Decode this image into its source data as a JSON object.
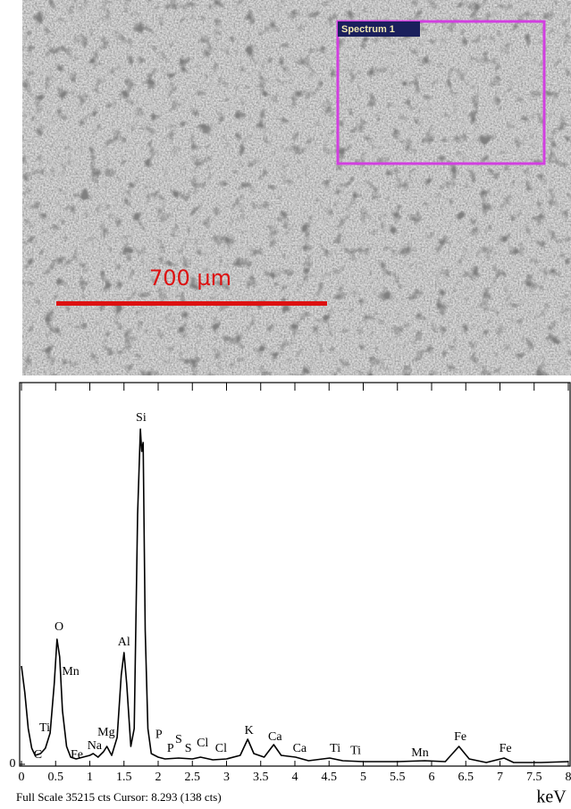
{
  "image": {
    "region_label": "Spectrum 1",
    "scale_bar_label": "700 µm"
  },
  "chart_data": {
    "type": "line",
    "x": [
      0,
      0.05,
      0.1,
      0.15,
      0.2,
      0.28,
      0.35,
      0.42,
      0.48,
      0.52,
      0.56,
      0.6,
      0.66,
      0.72,
      0.8,
      0.9,
      1.0,
      1.05,
      1.12,
      1.2,
      1.25,
      1.32,
      1.4,
      1.46,
      1.5,
      1.54,
      1.6,
      1.65,
      1.7,
      1.74,
      1.76,
      1.78,
      1.81,
      1.85,
      1.9,
      2.0,
      2.1,
      2.3,
      2.5,
      2.62,
      2.8,
      3.0,
      3.2,
      3.31,
      3.4,
      3.55,
      3.69,
      3.8,
      4.01,
      4.2,
      4.51,
      4.7,
      5.0,
      5.5,
      5.9,
      6.2,
      6.4,
      6.55,
      6.8,
      7.06,
      7.2,
      7.6,
      8.0
    ],
    "values": [
      9115,
      6630,
      3315,
      1490,
      830,
      995,
      1490,
      2900,
      7460,
      11600,
      9940,
      4970,
      1660,
      660,
      500,
      660,
      830,
      995,
      660,
      1160,
      1660,
      830,
      2490,
      8290,
      10360,
      7460,
      1660,
      3315,
      23200,
      31070,
      29000,
      29830,
      12430,
      3315,
      995,
      660,
      500,
      580,
      500,
      660,
      415,
      500,
      830,
      2320,
      995,
      660,
      1820,
      830,
      660,
      330,
      580,
      330,
      250,
      250,
      330,
      250,
      1660,
      500,
      165,
      580,
      165,
      165,
      250
    ],
    "color": "#000000",
    "xlim": [
      0,
      8
    ],
    "ylim": [
      0,
      35215
    ],
    "xticks": [
      0,
      0.5,
      1,
      1.5,
      2,
      2.5,
      3,
      3.5,
      4,
      4.5,
      5,
      5.5,
      6,
      6.5,
      7,
      7.5,
      8
    ],
    "yticks": [
      0
    ],
    "x_label": "keV",
    "footer": "Full Scale 35215 cts Cursor: 8.293 (138 cts)",
    "annotations": [
      {
        "text": "C",
        "x": 0.24,
        "y": 830
      },
      {
        "text": "Ti",
        "x": 0.34,
        "y": 3315
      },
      {
        "text": "Fe",
        "x": 0.81,
        "y": 830
      },
      {
        "text": "Na",
        "x": 1.07,
        "y": 1660
      },
      {
        "text": "Mg",
        "x": 1.24,
        "y": 2900
      },
      {
        "text": "O",
        "x": 0.55,
        "y": 12680
      },
      {
        "text": "Mn",
        "x": 0.72,
        "y": 8535
      },
      {
        "text": "Al",
        "x": 1.5,
        "y": 11270
      },
      {
        "text": "Si",
        "x": 1.75,
        "y": 32070
      },
      {
        "text": "P",
        "x": 2.01,
        "y": 2730
      },
      {
        "text": "P",
        "x": 2.18,
        "y": 1410
      },
      {
        "text": "S",
        "x": 2.3,
        "y": 2240
      },
      {
        "text": "S",
        "x": 2.44,
        "y": 1410
      },
      {
        "text": "Cl",
        "x": 2.65,
        "y": 1905
      },
      {
        "text": "Cl",
        "x": 2.92,
        "y": 1410
      },
      {
        "text": "K",
        "x": 3.33,
        "y": 3065
      },
      {
        "text": "Ca",
        "x": 3.71,
        "y": 2490
      },
      {
        "text": "Ca",
        "x": 4.07,
        "y": 1410
      },
      {
        "text": "Ti",
        "x": 4.59,
        "y": 1410
      },
      {
        "text": "Ti",
        "x": 4.89,
        "y": 1240
      },
      {
        "text": "Mn",
        "x": 5.83,
        "y": 995
      },
      {
        "text": "Fe",
        "x": 6.42,
        "y": 2490
      },
      {
        "text": "Fe",
        "x": 7.08,
        "y": 1410
      }
    ]
  }
}
